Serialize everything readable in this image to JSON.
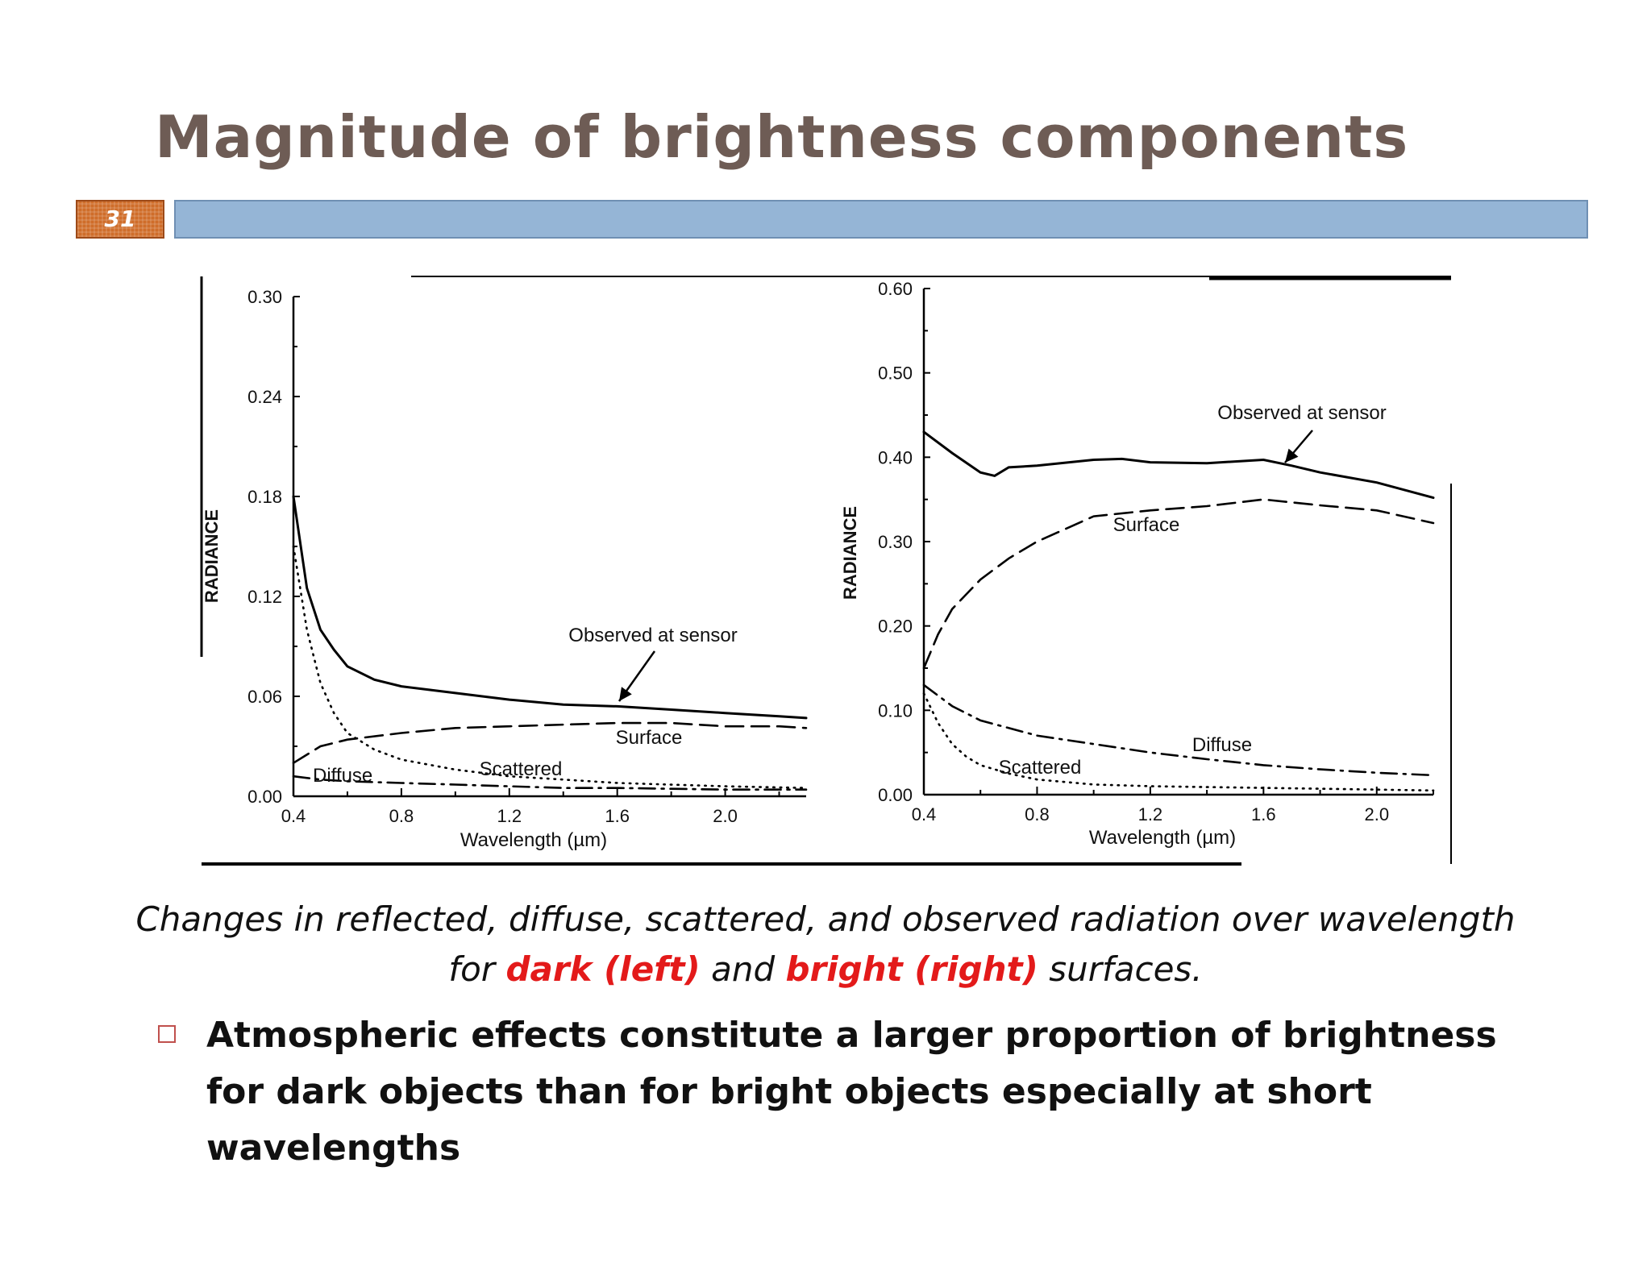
{
  "slide": {
    "title": "Magnitude of brightness components",
    "number": "31",
    "caption_line1": "Changes in reflected, diffuse, scattered, and observed radiation over wavelength",
    "caption_line2": {
      "pre": "for ",
      "dark": "dark (left)",
      "mid": " and ",
      "bright": "bright (right)",
      "post": " surfaces."
    },
    "bullet": "Atmospheric effects constitute a larger proportion of brightness for dark objects than for bright objects especially at short wavelengths",
    "colors": {
      "title": "#6e5c55",
      "bar": "#95b5d6",
      "badge": "#cf6d2a",
      "highlight": "#e31a1a"
    }
  },
  "chart_data": [
    {
      "type": "line",
      "panel": "left",
      "xlabel": "Wavelength (µm)",
      "ylabel": "RADIANCE",
      "xlim": [
        0.4,
        2.3
      ],
      "ylim": [
        0,
        0.3
      ],
      "xticks": [
        0.4,
        0.8,
        1.2,
        1.6,
        2.0
      ],
      "xtick_labels": [
        "0.4",
        "0.8",
        "1.2",
        "1.6",
        "2.0"
      ],
      "yticks": [
        0,
        0.06,
        0.12,
        0.18,
        0.24,
        0.3
      ],
      "ytick_labels": [
        "0.00",
        "0.06",
        "0.12",
        "0.18",
        "0.24",
        "0.30"
      ],
      "series": [
        {
          "name": "Observed at sensor",
          "style": "solid",
          "x": [
            0.4,
            0.45,
            0.5,
            0.55,
            0.6,
            0.7,
            0.8,
            0.9,
            1.0,
            1.2,
            1.4,
            1.6,
            1.8,
            2.0,
            2.2,
            2.3
          ],
          "y": [
            0.18,
            0.125,
            0.1,
            0.088,
            0.078,
            0.07,
            0.066,
            0.064,
            0.062,
            0.058,
            0.055,
            0.054,
            0.052,
            0.05,
            0.048,
            0.047
          ]
        },
        {
          "name": "Surface",
          "style": "dashed",
          "x": [
            0.4,
            0.5,
            0.6,
            0.8,
            1.0,
            1.2,
            1.4,
            1.6,
            1.8,
            2.0,
            2.2,
            2.3
          ],
          "y": [
            0.02,
            0.03,
            0.034,
            0.038,
            0.041,
            0.042,
            0.043,
            0.044,
            0.044,
            0.042,
            0.042,
            0.041
          ]
        },
        {
          "name": "Scattered",
          "style": "dotted",
          "x": [
            0.4,
            0.45,
            0.5,
            0.55,
            0.6,
            0.7,
            0.8,
            1.0,
            1.2,
            1.4,
            1.6,
            2.0,
            2.3
          ],
          "y": [
            0.15,
            0.1,
            0.068,
            0.05,
            0.038,
            0.028,
            0.022,
            0.016,
            0.012,
            0.01,
            0.008,
            0.006,
            0.005
          ]
        },
        {
          "name": "Diffuse",
          "style": "dash-dot",
          "x": [
            0.4,
            0.5,
            0.6,
            0.8,
            1.0,
            1.2,
            1.4,
            1.6,
            2.0,
            2.3
          ],
          "y": [
            0.012,
            0.01,
            0.009,
            0.008,
            0.007,
            0.006,
            0.005,
            0.005,
            0.004,
            0.004
          ]
        }
      ],
      "annotations": [
        "Observed at sensor",
        "Surface",
        "Scattered",
        "Diffuse"
      ]
    },
    {
      "type": "line",
      "panel": "right",
      "xlabel": "Wavelength (µm)",
      "ylabel": "RADIANCE",
      "xlim": [
        0.4,
        2.2
      ],
      "ylim": [
        0,
        0.6
      ],
      "xticks": [
        0.4,
        0.8,
        1.2,
        1.6,
        2.0
      ],
      "xtick_labels": [
        "0.4",
        "0.8",
        "1.2",
        "1.6",
        "2.0"
      ],
      "yticks": [
        0,
        0.1,
        0.2,
        0.3,
        0.4,
        0.5,
        0.6
      ],
      "ytick_labels": [
        "0.00",
        "0.10",
        "0.20",
        "0.30",
        "0.40",
        "0.50",
        "0.60"
      ],
      "series": [
        {
          "name": "Observed at sensor",
          "style": "solid",
          "x": [
            0.4,
            0.5,
            0.6,
            0.65,
            0.7,
            0.8,
            1.0,
            1.1,
            1.2,
            1.4,
            1.6,
            1.7,
            1.8,
            2.0,
            2.2
          ],
          "y": [
            0.43,
            0.405,
            0.382,
            0.378,
            0.388,
            0.39,
            0.397,
            0.398,
            0.394,
            0.393,
            0.397,
            0.39,
            0.382,
            0.37,
            0.352
          ]
        },
        {
          "name": "Surface",
          "style": "dashed",
          "x": [
            0.4,
            0.45,
            0.5,
            0.6,
            0.7,
            0.8,
            0.9,
            1.0,
            1.2,
            1.4,
            1.6,
            1.8,
            2.0,
            2.2
          ],
          "y": [
            0.15,
            0.19,
            0.22,
            0.255,
            0.28,
            0.3,
            0.315,
            0.33,
            0.337,
            0.342,
            0.35,
            0.343,
            0.337,
            0.322
          ]
        },
        {
          "name": "Scattered",
          "style": "dotted",
          "x": [
            0.4,
            0.45,
            0.5,
            0.55,
            0.6,
            0.7,
            0.8,
            1.0,
            1.2,
            1.6,
            2.0,
            2.2
          ],
          "y": [
            0.12,
            0.085,
            0.06,
            0.045,
            0.035,
            0.025,
            0.018,
            0.012,
            0.01,
            0.008,
            0.006,
            0.005
          ]
        },
        {
          "name": "Diffuse",
          "style": "dash-dot",
          "x": [
            0.4,
            0.5,
            0.6,
            0.8,
            1.0,
            1.2,
            1.4,
            1.6,
            1.8,
            2.0,
            2.2
          ],
          "y": [
            0.13,
            0.105,
            0.088,
            0.07,
            0.06,
            0.05,
            0.042,
            0.035,
            0.03,
            0.026,
            0.023
          ]
        }
      ],
      "annotations": [
        "Observed at sensor",
        "Surface",
        "Scattered",
        "Diffuse"
      ]
    }
  ]
}
